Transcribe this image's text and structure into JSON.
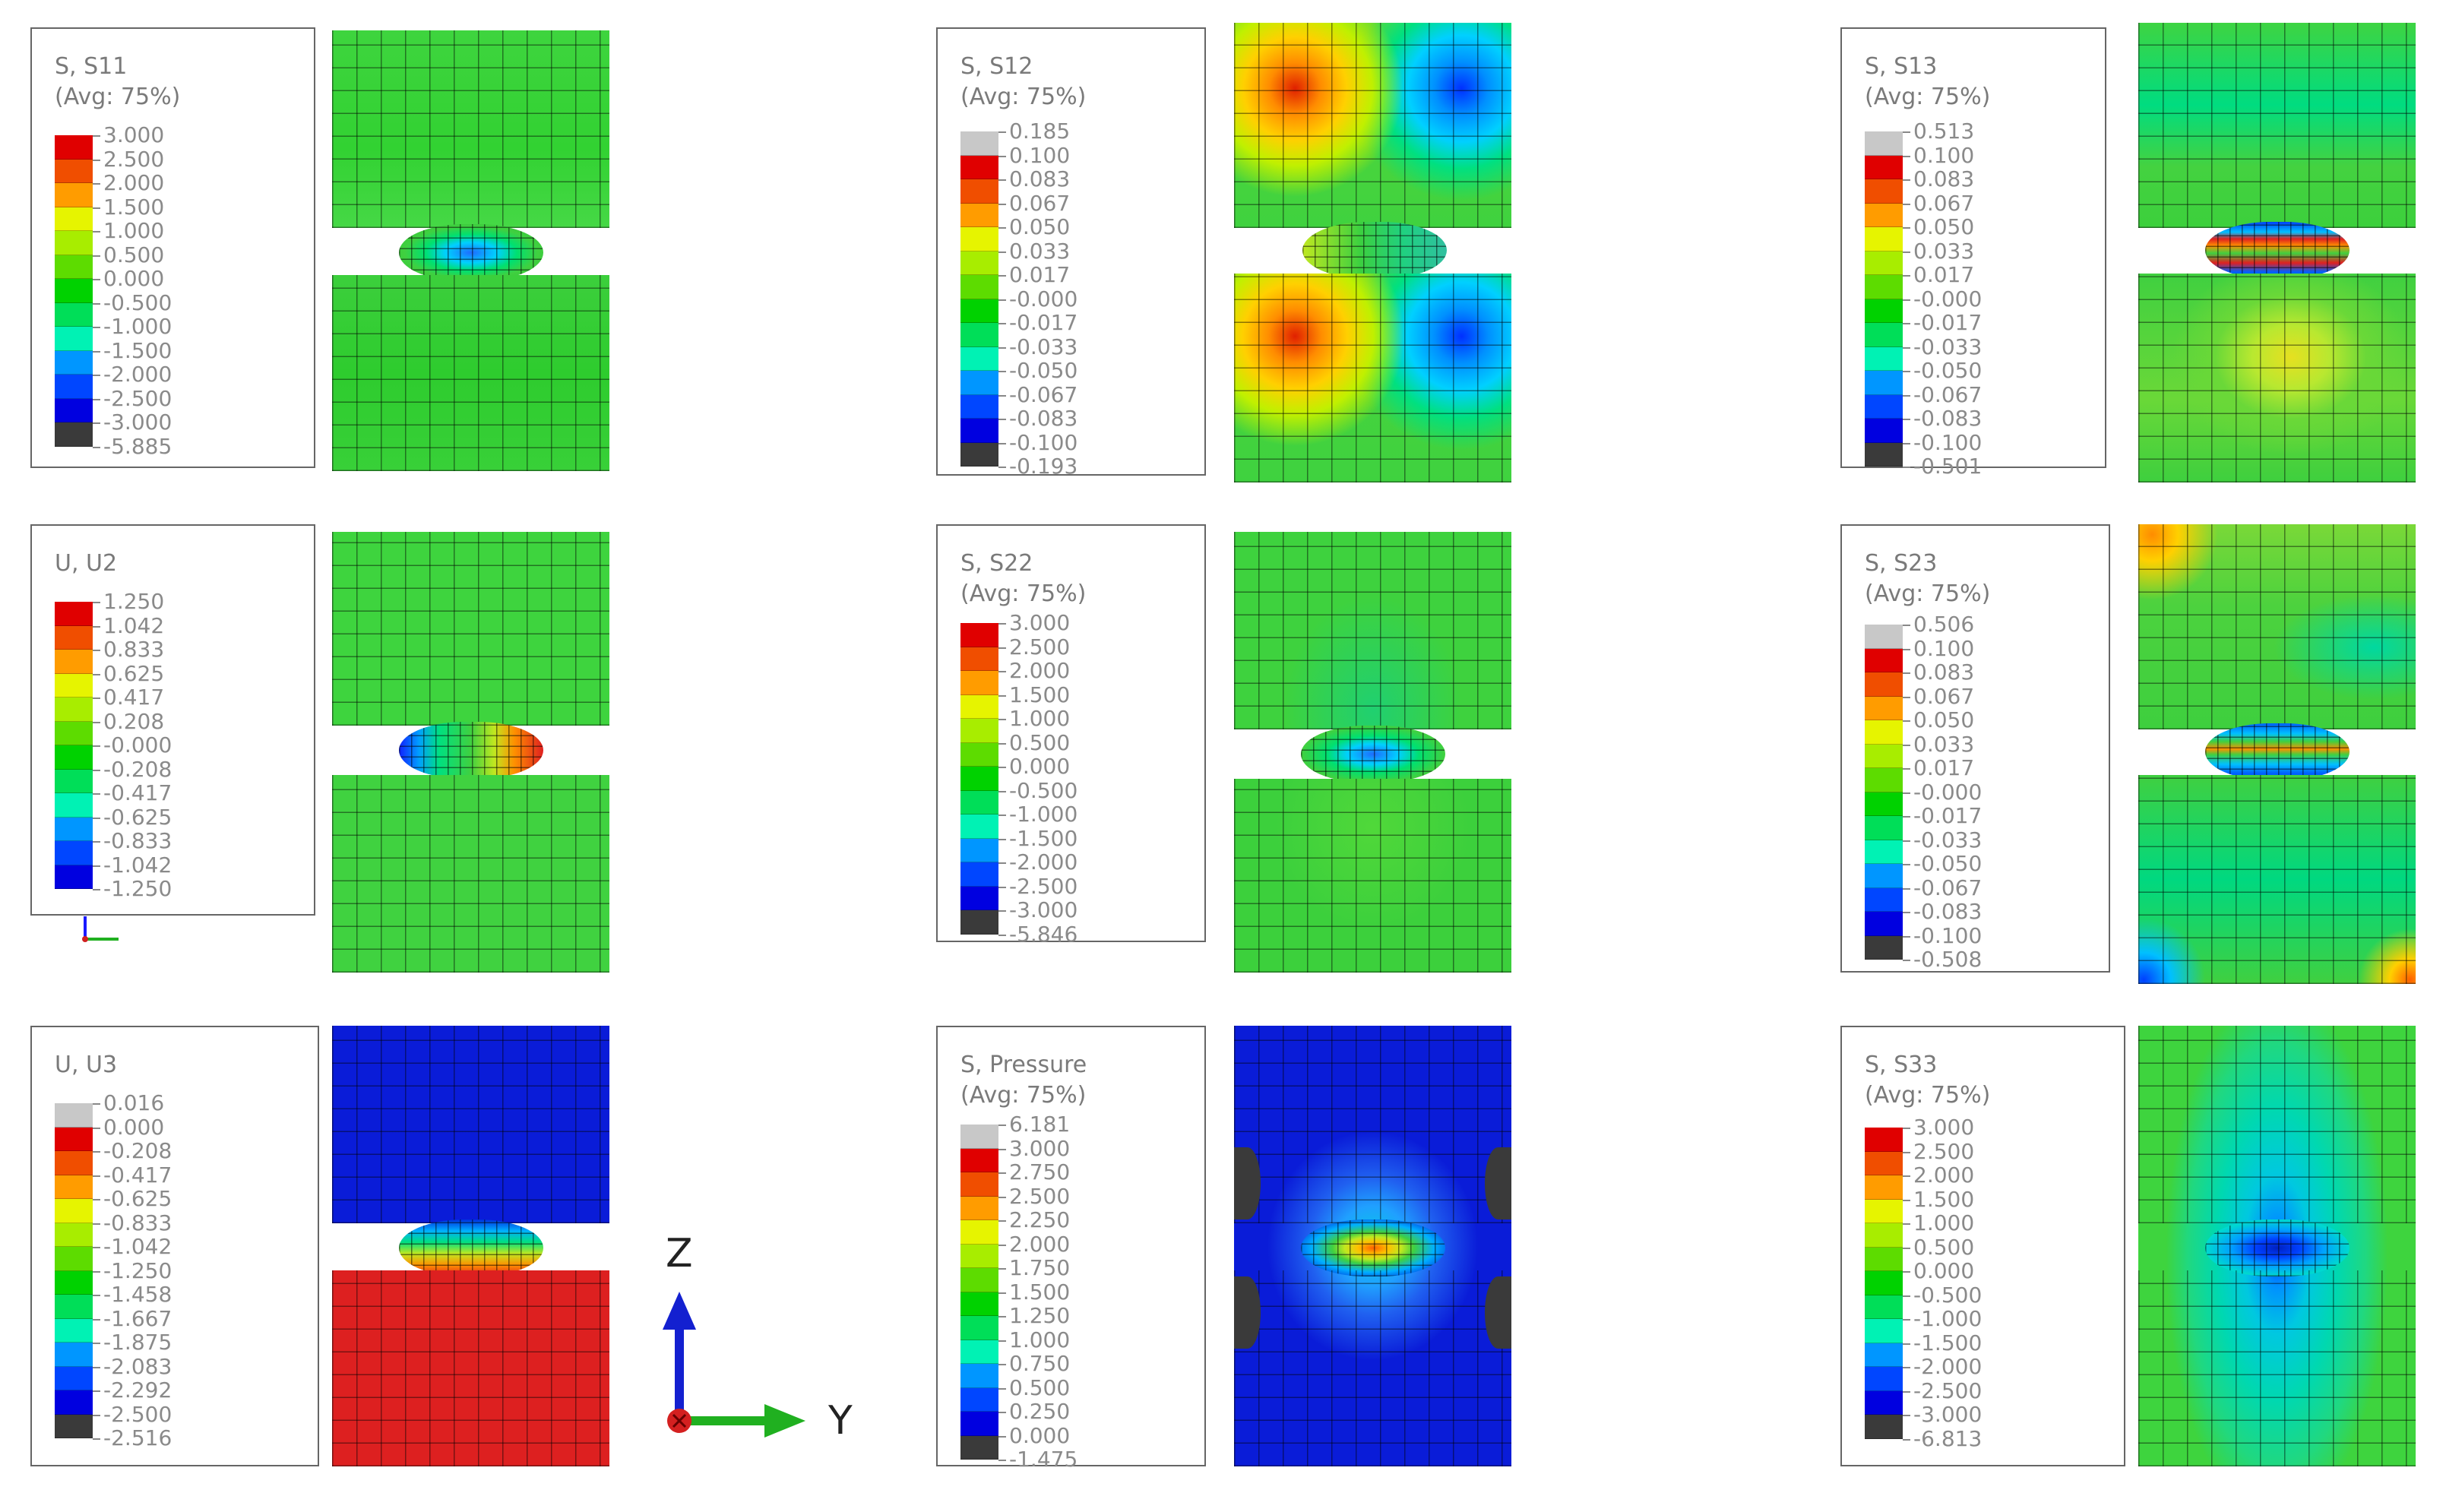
{
  "colors": {
    "scale": [
      "#e00000",
      "#f04e00",
      "#ff9c00",
      "#ffd500",
      "#e6f400",
      "#a8ed00",
      "#5ddc00",
      "#00d200",
      "#00de58",
      "#00f2b4",
      "#00d6ff",
      "#0096ff",
      "#0046ff",
      "#0000e0"
    ],
    "max_grey": "#c8c8c8",
    "min_dark": "#3a3a3a",
    "base_green": "#22cc22",
    "blue_field": "#0a1cd8",
    "red_field": "#dd2020"
  },
  "panels": [
    {
      "id": "s11",
      "title": [
        "S, S11",
        "(Avg: 75%)"
      ],
      "ticks": [
        "3.000",
        "2.500",
        "2.000",
        "1.500",
        "1.000",
        "0.500",
        "0.000",
        "-0.500",
        "-1.000",
        "-1.500",
        "-2.000",
        "-2.500",
        "-3.000",
        "-5.885"
      ],
      "top_grey": false,
      "bottom_dark": true
    },
    {
      "id": "s12",
      "title": [
        "S, S12",
        "(Avg: 75%)"
      ],
      "ticks": [
        "0.185",
        "0.100",
        "0.083",
        "0.067",
        "0.050",
        "0.033",
        "0.017",
        "-0.000",
        "-0.017",
        "-0.033",
        "-0.050",
        "-0.067",
        "-0.083",
        "-0.100",
        "-0.193"
      ],
      "top_grey": true,
      "bottom_dark": true
    },
    {
      "id": "s13",
      "title": [
        "S, S13",
        "(Avg: 75%)"
      ],
      "ticks": [
        "0.513",
        "0.100",
        "0.083",
        "0.067",
        "0.050",
        "0.033",
        "0.017",
        "-0.000",
        "-0.017",
        "-0.033",
        "-0.050",
        "-0.067",
        "-0.083",
        "-0.100",
        "-0.501"
      ],
      "top_grey": true,
      "bottom_dark": true
    },
    {
      "id": "u2",
      "title": [
        "U, U2",
        ""
      ],
      "ticks": [
        "1.250",
        "1.042",
        "0.833",
        "0.625",
        "0.417",
        "0.208",
        "-0.000",
        "-0.208",
        "-0.417",
        "-0.625",
        "-0.833",
        "-1.042",
        "-1.250"
      ],
      "top_grey": false,
      "bottom_dark": false
    },
    {
      "id": "s22",
      "title": [
        "S, S22",
        "(Avg: 75%)"
      ],
      "ticks": [
        "3.000",
        "2.500",
        "2.000",
        "1.500",
        "1.000",
        "0.500",
        "0.000",
        "-0.500",
        "-1.000",
        "-1.500",
        "-2.000",
        "-2.500",
        "-3.000",
        "-5.846"
      ],
      "top_grey": false,
      "bottom_dark": true
    },
    {
      "id": "s23",
      "title": [
        "S, S23",
        "(Avg: 75%)"
      ],
      "ticks": [
        "0.506",
        "0.100",
        "0.083",
        "0.067",
        "0.050",
        "0.033",
        "0.017",
        "-0.000",
        "-0.017",
        "-0.033",
        "-0.050",
        "-0.067",
        "-0.083",
        "-0.100",
        "-0.508"
      ],
      "top_grey": true,
      "bottom_dark": true
    },
    {
      "id": "u3",
      "title": [
        "U, U3",
        ""
      ],
      "ticks": [
        "0.016",
        "0.000",
        "-0.208",
        "-0.417",
        "-0.625",
        "-0.833",
        "-1.042",
        "-1.250",
        "-1.458",
        "-1.667",
        "-1.875",
        "-2.083",
        "-2.292",
        "-2.500",
        "-2.516"
      ],
      "top_grey": true,
      "bottom_dark": true
    },
    {
      "id": "pressure",
      "title": [
        "S, Pressure",
        "(Avg: 75%)"
      ],
      "ticks": [
        "6.181",
        "3.000",
        "2.750",
        "2.500",
        "2.250",
        "2.000",
        "1.750",
        "1.500",
        "1.250",
        "1.000",
        "0.750",
        "0.500",
        "0.250",
        "0.000",
        "-1.475"
      ],
      "top_grey": true,
      "bottom_dark": true
    },
    {
      "id": "s33",
      "title": [
        "S, S33",
        "(Avg: 75%)"
      ],
      "ticks": [
        "3.000",
        "2.500",
        "2.000",
        "1.500",
        "1.000",
        "0.500",
        "0.000",
        "-0.500",
        "-1.000",
        "-1.500",
        "-2.000",
        "-2.500",
        "-3.000",
        "-6.813"
      ],
      "top_grey": false,
      "bottom_dark": true
    }
  ],
  "axes": {
    "z_label": "Z",
    "y_label": "Y"
  }
}
